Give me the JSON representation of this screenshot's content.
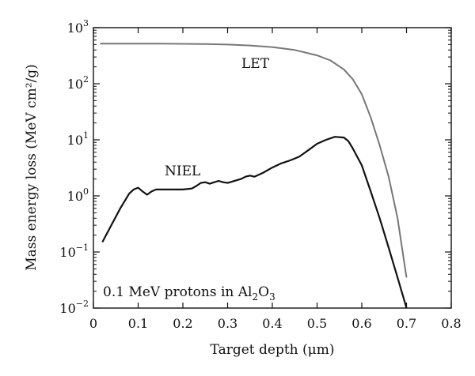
{
  "chart_data": {
    "type": "line",
    "title": "",
    "xlabel": "Target depth (μm)",
    "ylabel": "Mass energy loss (MeV cm²/g)",
    "xlim": [
      0,
      0.8
    ],
    "ylim": [
      0.01,
      1000
    ],
    "yscale": "log",
    "grid": false,
    "x_ticks": [
      "0",
      "0.1",
      "0.2",
      "0.3",
      "0.4",
      "0.5",
      "0.6",
      "0.7",
      "0.8"
    ],
    "y_ticks": [
      {
        "base": "10",
        "exp": "3"
      },
      {
        "base": "10",
        "exp": "2"
      },
      {
        "base": "10",
        "exp": "1"
      },
      {
        "base": "10",
        "exp": "0"
      },
      {
        "base": "10",
        "exp": "−1"
      },
      {
        "base": "10",
        "exp": "−2"
      }
    ],
    "annotation": {
      "prefix": "0.1 MeV protons in Al",
      "sub1": "2",
      "mid": "O",
      "sub2": "3"
    },
    "series": [
      {
        "name": "LET",
        "color": "#777777",
        "x": [
          0.015,
          0.05,
          0.1,
          0.15,
          0.2,
          0.25,
          0.3,
          0.35,
          0.4,
          0.45,
          0.5,
          0.53,
          0.56,
          0.58,
          0.6,
          0.62,
          0.64,
          0.66,
          0.68,
          0.7
        ],
        "y": [
          520,
          520,
          520,
          518,
          515,
          510,
          500,
          480,
          450,
          400,
          320,
          260,
          180,
          120,
          65,
          25,
          8,
          2.2,
          0.4,
          0.035
        ]
      },
      {
        "name": "NIEL",
        "color": "#111111",
        "x": [
          0.02,
          0.04,
          0.06,
          0.08,
          0.09,
          0.1,
          0.11,
          0.12,
          0.13,
          0.14,
          0.16,
          0.18,
          0.2,
          0.22,
          0.23,
          0.24,
          0.25,
          0.26,
          0.27,
          0.28,
          0.29,
          0.3,
          0.31,
          0.32,
          0.33,
          0.34,
          0.35,
          0.36,
          0.38,
          0.4,
          0.42,
          0.44,
          0.46,
          0.48,
          0.5,
          0.52,
          0.54,
          0.56,
          0.57,
          0.58,
          0.6,
          0.62,
          0.64,
          0.66,
          0.68,
          0.7
        ],
        "y": [
          0.15,
          0.3,
          0.6,
          1.1,
          1.3,
          1.4,
          1.2,
          1.05,
          1.2,
          1.3,
          1.3,
          1.3,
          1.3,
          1.35,
          1.5,
          1.7,
          1.75,
          1.65,
          1.75,
          1.85,
          1.75,
          1.7,
          1.8,
          1.9,
          2.0,
          2.2,
          2.3,
          2.2,
          2.6,
          3.2,
          3.8,
          4.3,
          5.0,
          6.5,
          8.5,
          10,
          11.3,
          11,
          9.5,
          7,
          3.5,
          1.2,
          0.4,
          0.12,
          0.035,
          0.01
        ]
      }
    ]
  }
}
